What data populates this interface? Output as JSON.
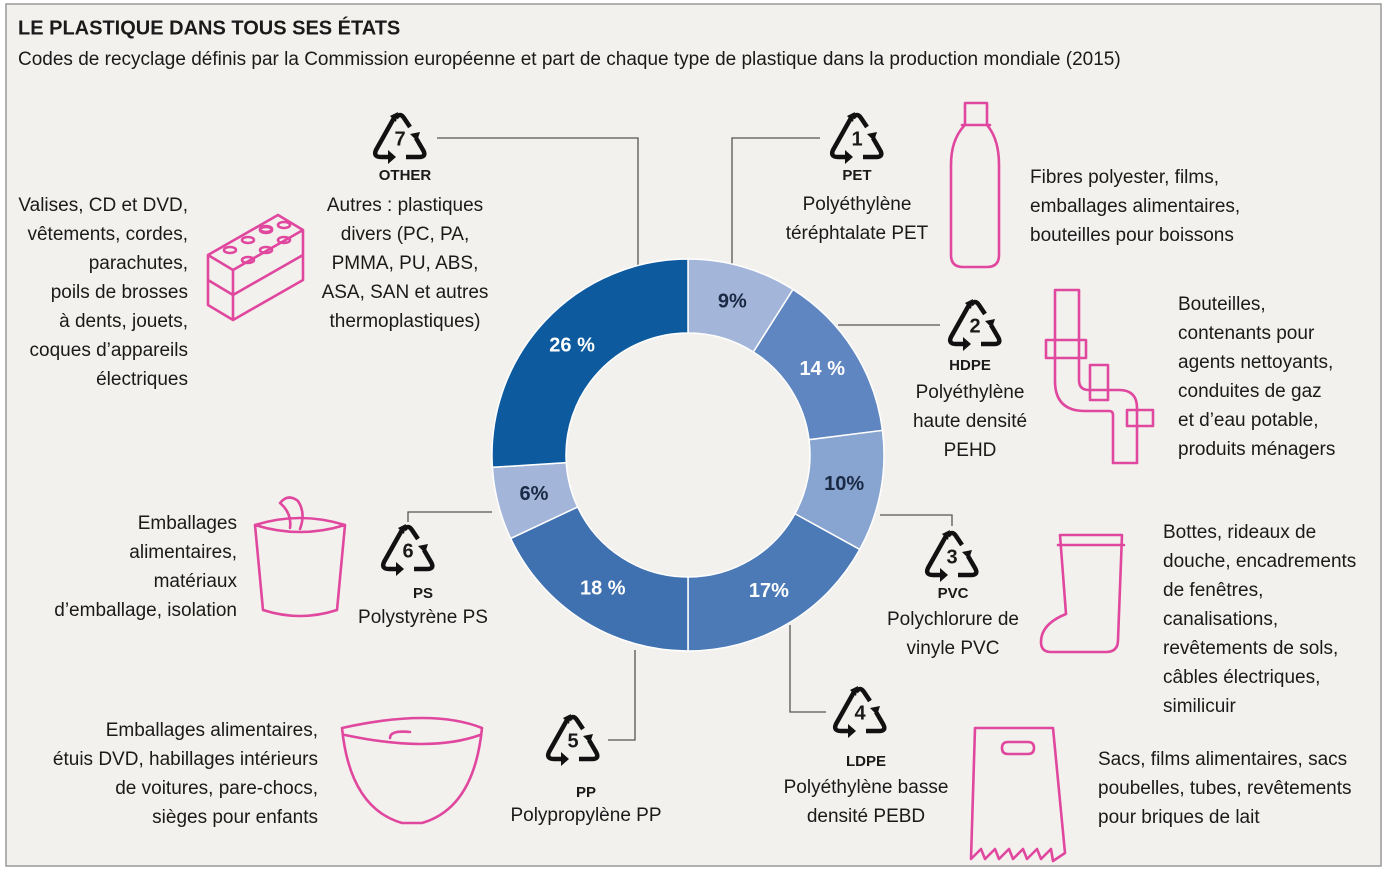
{
  "chart_data": {
    "type": "pie",
    "donut": true,
    "title": "LE PLASTIQUE DANS TOUS SES ÉTATS",
    "subtitle": "Codes de recyclage définis par la Commission européenne et part de chaque type de plastique dans la production mondiale (2015)",
    "categories": [
      "PET",
      "HDPE",
      "PVC",
      "LDPE",
      "PP",
      "PS",
      "OTHER"
    ],
    "values": [
      9,
      14,
      10,
      17,
      18,
      6,
      26
    ],
    "value_labels": [
      "9%",
      "14 %",
      "10%",
      "17%",
      "18 %",
      "6%",
      "26 %"
    ],
    "colors": [
      "#a3b6da",
      "#5f86c0",
      "#88a4d0",
      "#4c7ab7",
      "#3f70af",
      "#a3b6da",
      "#0d5a9f"
    ],
    "codes": [
      1,
      2,
      3,
      4,
      5,
      6,
      7
    ],
    "names": [
      [
        "Polyéthylène",
        "téréphtalate PET"
      ],
      [
        "Polyéthylène",
        "haute densité",
        "PEHD"
      ],
      [
        "Polychlorure de",
        "vinyle PVC"
      ],
      [
        "Polyéthylène basse",
        "densité PEBD"
      ],
      [
        "Polypropylène PP"
      ],
      [
        "Polystyrène PS"
      ],
      [
        "Autres : plastiques",
        "divers (PC, PA,",
        "PMMA, PU, ABS,",
        "ASA, SAN  et autres",
        "thermoplastiques)"
      ]
    ],
    "uses": [
      [
        "Fibres polyester, films,",
        "emballages alimentaires,",
        "bouteilles pour boissons"
      ],
      [
        "Bouteilles,",
        "contenants pour",
        "agents nettoyants,",
        "conduites de gaz",
        "et d’eau potable,",
        "produits ménagers"
      ],
      [
        "Bottes, rideaux de",
        "douche, encadrements",
        "de fenêtres,",
        "canalisations,",
        "revêtements de sols,",
        "câbles électriques,",
        "similicuir"
      ],
      [
        "Sacs, films alimentaires, sacs",
        "poubelles, tubes, revêtements",
        "pour briques de lait"
      ],
      [
        "Emballages alimentaires,",
        "étuis DVD, habillages intérieurs",
        "de voitures, pare-chocs,",
        "sièges pour enfants"
      ],
      [
        "Emballages",
        "alimentaires,",
        "matériaux",
        "d’emballage, isolation"
      ],
      [
        "Valises, CD et DVD,",
        "vêtements, cordes,",
        "parachutes,",
        "poils de brosses",
        "à dents, jouets,",
        "coques d’appareils",
        "électriques"
      ]
    ]
  }
}
